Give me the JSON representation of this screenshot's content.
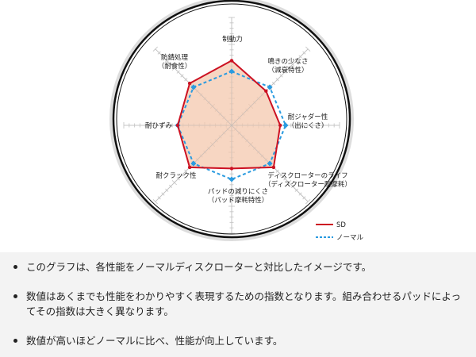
{
  "chart_data": {
    "type": "radar",
    "axes": [
      {
        "label": [
          "制動力"
        ]
      },
      {
        "label": [
          "鳴きの少なさ",
          "（減衰特性）"
        ]
      },
      {
        "label": [
          "耐ジャダー性",
          "（出にくさ）"
        ]
      },
      {
        "label": [
          "ディスクローターのライフ",
          "（ディスクローター耐摩耗）"
        ]
      },
      {
        "label": [
          "パッドの減りにくさ",
          "（パッド摩耗特性）"
        ]
      },
      {
        "label": [
          "耐クラック性"
        ]
      },
      {
        "label": [
          "耐ひずみ"
        ]
      },
      {
        "label": [
          "防錆処理",
          "（耐食性）"
        ]
      }
    ],
    "range": [
      0,
      200
    ],
    "series": [
      {
        "name": "SD",
        "color": "#cc1122",
        "style": "solid",
        "fill": "#f4c8ad",
        "values": [
          120,
          90,
          90,
          110,
          80,
          110,
          100,
          110
        ]
      },
      {
        "name": "ノーマル",
        "color": "#2a9be0",
        "style": "dashed",
        "values": [
          100,
          100,
          100,
          100,
          100,
          100,
          100,
          100
        ]
      }
    ],
    "legend": "bottom-right"
  },
  "notes": [
    "このグラフは、各性能をノーマルディスクローターと対比したイメージです。",
    "数値はあくまでも性能をわかりやすく表現するための指数となります。組み合わせるパッドによってその指数は大きく異なります。",
    "数値が高いほどノーマルに比べ、性能が向上しています。"
  ]
}
